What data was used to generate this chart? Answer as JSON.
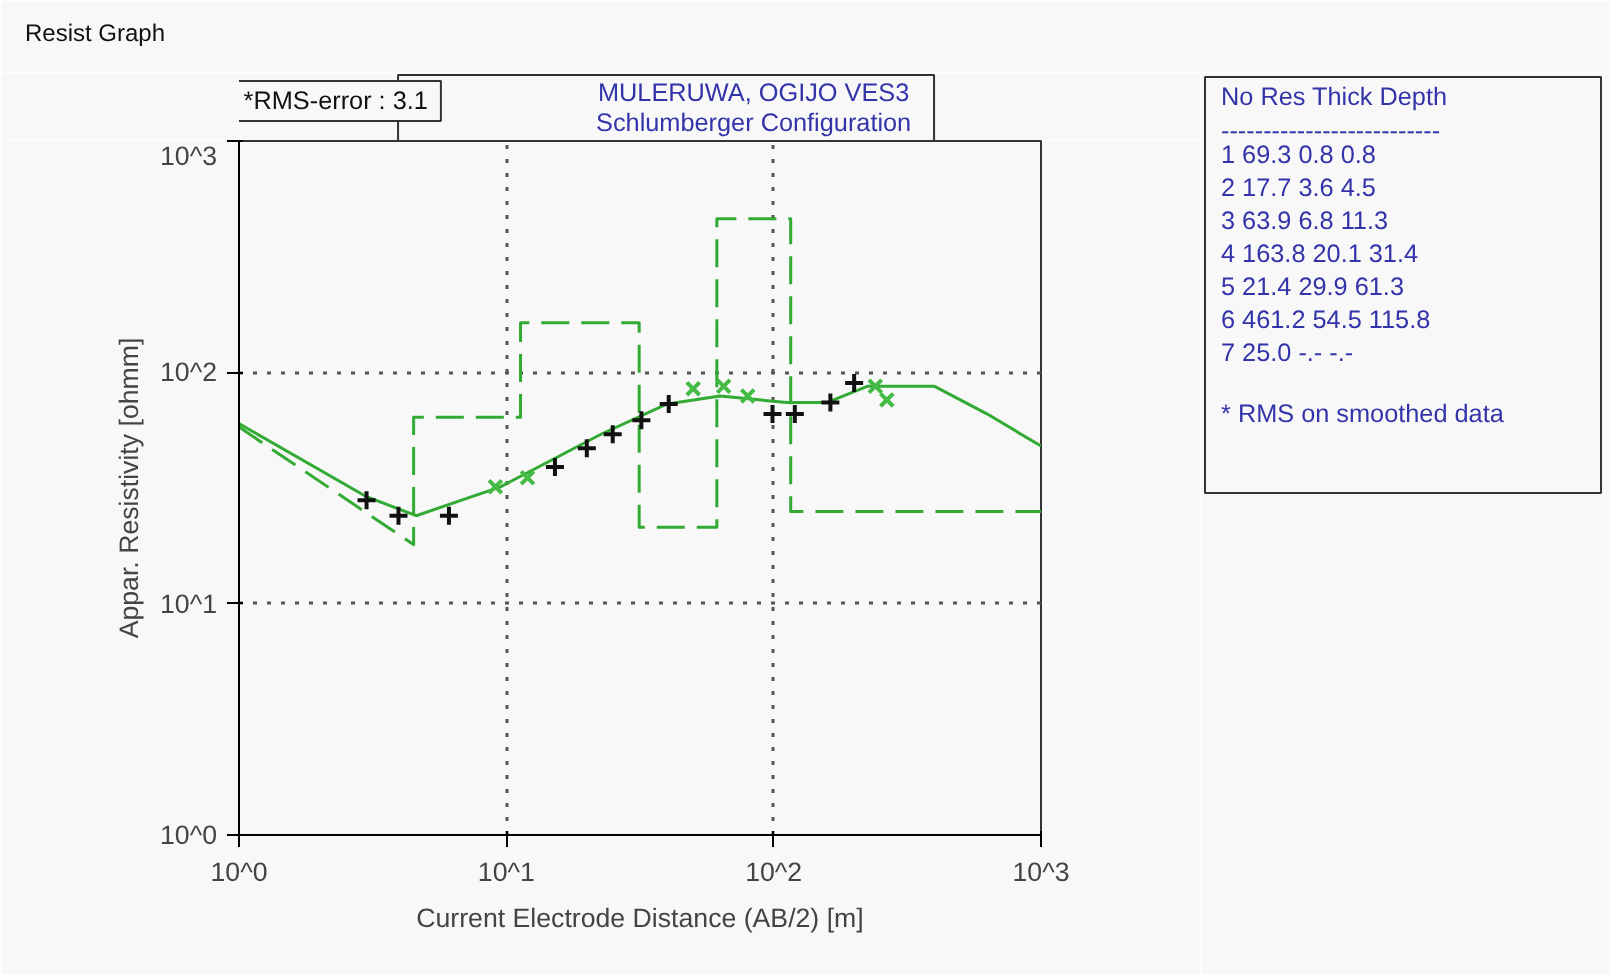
{
  "chart_data": {
    "type": "line",
    "title": "MULERUWA, OGIJO VES3",
    "subtitle": "Schlumberger Configuration",
    "xlabel": "Current Electrode Distance (AB/2) [m]",
    "ylabel": "Appar. Resistivity [ohmm]",
    "log": "xy",
    "xlim": [
      1,
      1000
    ],
    "ylim": [
      1,
      1000
    ],
    "xticks": [
      {
        "value": 1,
        "label": "10^0"
      },
      {
        "value": 10,
        "label": "10^1"
      },
      {
        "value": 100,
        "label": "10^2"
      },
      {
        "value": 1000,
        "label": "10^3"
      }
    ],
    "yticks": [
      {
        "value": 1,
        "label": "10^0"
      },
      {
        "value": 10,
        "label": "10^1"
      },
      {
        "value": 100,
        "label": "10^2"
      },
      {
        "value": 1000,
        "label": "10^3"
      }
    ],
    "grid": true,
    "series": [
      {
        "line_style": "dashed",
        "color": "#33aa33",
        "x": [
          1,
          4.5,
          4.5,
          11.3,
          11.3,
          31.4,
          31.4,
          61.3,
          61.3,
          115.8,
          115.8,
          1000
        ],
        "values": [
          58,
          18,
          63.9,
          63.9,
          163.8,
          163.8,
          21.4,
          21.4,
          461.2,
          461.2,
          25,
          25
        ]
      },
      {
        "line_style": "solid",
        "color": "#33aa33",
        "x": [
          1,
          3.0,
          4.6,
          9.5,
          22.6,
          40,
          63,
          112,
          158,
          224,
          400,
          630,
          1000
        ],
        "values": [
          60,
          29,
          24,
          32,
          54,
          73,
          79,
          74,
          74,
          87,
          87,
          66,
          48
        ]
      },
      {
        "type": "scatter",
        "marker": "cross",
        "color": "#111111",
        "x": [
          3.0,
          3.95,
          6.1,
          15.2,
          20,
          25,
          32,
          40.5,
          99,
          120,
          163,
          200
        ],
        "values": [
          28,
          24,
          24,
          39,
          47,
          54,
          62,
          73,
          66,
          66,
          74,
          90
        ]
      },
      {
        "type": "scatter",
        "marker": "x",
        "color": "#44bb44",
        "x": [
          9.1,
          12,
          50,
          65,
          80,
          240,
          265
        ],
        "values": [
          32,
          35,
          85,
          87,
          79,
          87,
          76
        ]
      }
    ],
    "annotations": [
      "Resist Graph",
      "*RMS-error :  3.1",
      "No   Res  Thick  Depth",
      "--------------------------",
      "1   69.3    0.8     0.8",
      "2   17.7    3.6     4.5",
      "3   63.9    6.8    11.3",
      "4  163.8   20.1    31.4",
      "5   21.4   29.9    61.3",
      "6  461.2   54.5   115.8",
      "7   25.0    -.-     -.-",
      "* RMS on smoothed data"
    ]
  }
}
